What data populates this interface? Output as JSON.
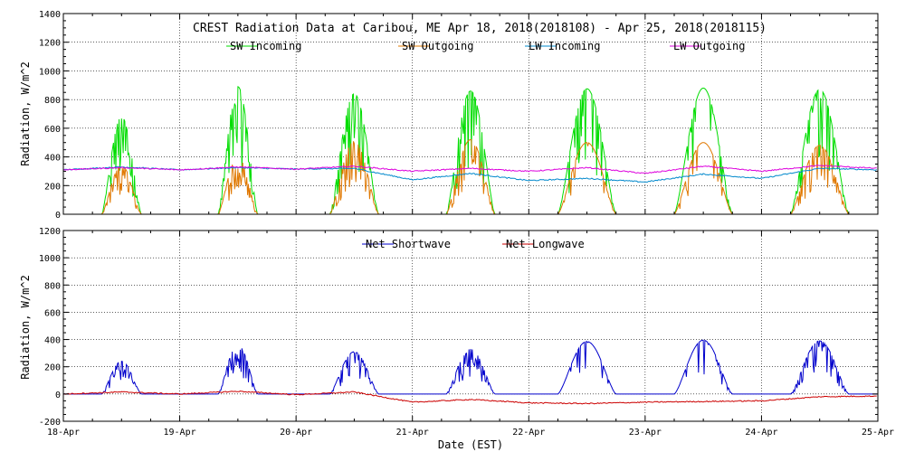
{
  "chart_data": [
    {
      "type": "line",
      "title": "CREST Radiation Data at Caribou, ME   Apr 18, 2018(2018108) - Apr 25, 2018(2018115)",
      "ylabel": "Radiation, W/m^2",
      "xlabel": "",
      "ylim": [
        0,
        1400
      ],
      "yticks": [
        0,
        200,
        400,
        600,
        800,
        1000,
        1200,
        1400
      ],
      "xlim": [
        "2018-04-18",
        "2018-04-25"
      ],
      "grid": true,
      "legend": "top",
      "x_unit": "date (EST), daily tick at 00:00",
      "series": [
        {
          "name": "SW Incoming",
          "color": "#00dd00",
          "daily_peak": [
            680,
            890,
            840,
            860,
            875,
            880,
            870
          ],
          "points": [
            [
              "04-18 08:00",
              0
            ],
            [
              "04-18 12:00",
              680
            ],
            [
              "04-18 16:00",
              0
            ],
            [
              "04-19 08:00",
              0
            ],
            [
              "04-19 12:00",
              890
            ],
            [
              "04-19 16:00",
              0
            ],
            [
              "04-20 07:00",
              0
            ],
            [
              "04-20 12:00",
              840
            ],
            [
              "04-20 17:00",
              0
            ],
            [
              "04-21 07:00",
              0
            ],
            [
              "04-21 12:00",
              860
            ],
            [
              "04-21 17:00",
              0
            ],
            [
              "04-22 06:00",
              0
            ],
            [
              "04-22 12:00",
              875
            ],
            [
              "04-22 18:00",
              0
            ],
            [
              "04-23 06:00",
              0
            ],
            [
              "04-23 12:00",
              880
            ],
            [
              "04-23 18:00",
              0
            ],
            [
              "04-24 06:00",
              0
            ],
            [
              "04-24 12:00",
              870
            ],
            [
              "04-24 18:00",
              0
            ]
          ]
        },
        {
          "name": "SW Outgoing",
          "color": "#e07800",
          "daily_peak": [
            340,
            400,
            510,
            520,
            500,
            500,
            480
          ],
          "points": [
            [
              "04-18 08:00",
              0
            ],
            [
              "04-18 12:00",
              340
            ],
            [
              "04-18 16:00",
              0
            ],
            [
              "04-19 08:00",
              0
            ],
            [
              "04-19 12:00",
              400
            ],
            [
              "04-19 16:00",
              0
            ],
            [
              "04-20 07:00",
              0
            ],
            [
              "04-20 12:00",
              510
            ],
            [
              "04-20 17:00",
              0
            ],
            [
              "04-21 07:00",
              0
            ],
            [
              "04-21 12:00",
              520
            ],
            [
              "04-21 17:00",
              0
            ],
            [
              "04-22 06:00",
              0
            ],
            [
              "04-22 12:00",
              500
            ],
            [
              "04-22 18:00",
              0
            ],
            [
              "04-23 06:00",
              0
            ],
            [
              "04-23 12:00",
              500
            ],
            [
              "04-23 18:00",
              0
            ],
            [
              "04-24 06:00",
              0
            ],
            [
              "04-24 12:00",
              480
            ],
            [
              "04-24 18:00",
              0
            ]
          ]
        },
        {
          "name": "LW Incoming",
          "color": "#0088cc",
          "points": [
            [
              "04-18 00:00",
              310
            ],
            [
              "04-18 12:00",
              330
            ],
            [
              "04-19 00:00",
              310
            ],
            [
              "04-19 12:00",
              325
            ],
            [
              "04-20 00:00",
              315
            ],
            [
              "04-20 12:00",
              320
            ],
            [
              "04-21 00:00",
              240
            ],
            [
              "04-21 12:00",
              285
            ],
            [
              "04-22 00:00",
              235
            ],
            [
              "04-22 12:00",
              250
            ],
            [
              "04-23 00:00",
              225
            ],
            [
              "04-23 12:00",
              280
            ],
            [
              "04-24 00:00",
              250
            ],
            [
              "04-24 12:00",
              320
            ],
            [
              "04-25 00:00",
              310
            ]
          ]
        },
        {
          "name": "LW Outgoing",
          "color": "#dd00dd",
          "points": [
            [
              "04-18 00:00",
              310
            ],
            [
              "04-18 12:00",
              325
            ],
            [
              "04-19 00:00",
              310
            ],
            [
              "04-19 12:00",
              330
            ],
            [
              "04-20 00:00",
              315
            ],
            [
              "04-20 12:00",
              335
            ],
            [
              "04-21 00:00",
              300
            ],
            [
              "04-21 12:00",
              320
            ],
            [
              "04-22 00:00",
              300
            ],
            [
              "04-22 12:00",
              325
            ],
            [
              "04-23 00:00",
              285
            ],
            [
              "04-23 12:00",
              335
            ],
            [
              "04-24 00:00",
              300
            ],
            [
              "04-24 12:00",
              340
            ],
            [
              "04-25 00:00",
              320
            ]
          ]
        }
      ]
    },
    {
      "type": "line",
      "title": "",
      "ylabel": "Radiation, W/m^2",
      "xlabel": "Date (EST)",
      "ylim": [
        -200,
        1200
      ],
      "yticks": [
        -200,
        0,
        200,
        400,
        600,
        800,
        1000,
        1200
      ],
      "categories": [
        "18-Apr",
        "19-Apr",
        "20-Apr",
        "21-Apr",
        "22-Apr",
        "23-Apr",
        "24-Apr",
        "25-Apr"
      ],
      "grid": true,
      "legend": "top",
      "series": [
        {
          "name": "Net Shortwave",
          "color": "#0000cc",
          "daily_peak": [
            240,
            360,
            310,
            330,
            385,
            395,
            390
          ],
          "points": [
            [
              "04-18 08:00",
              0
            ],
            [
              "04-18 12:00",
              240
            ],
            [
              "04-18 16:00",
              0
            ],
            [
              "04-19 08:00",
              0
            ],
            [
              "04-19 12:00",
              360
            ],
            [
              "04-19 16:00",
              0
            ],
            [
              "04-20 07:00",
              0
            ],
            [
              "04-20 12:00",
              310
            ],
            [
              "04-20 17:00",
              0
            ],
            [
              "04-21 07:00",
              0
            ],
            [
              "04-21 12:00",
              330
            ],
            [
              "04-21 17:00",
              0
            ],
            [
              "04-22 06:00",
              0
            ],
            [
              "04-22 12:00",
              385
            ],
            [
              "04-22 18:00",
              0
            ],
            [
              "04-23 06:00",
              0
            ],
            [
              "04-23 12:00",
              395
            ],
            [
              "04-23 18:00",
              0
            ],
            [
              "04-24 06:00",
              0
            ],
            [
              "04-24 12:00",
              390
            ],
            [
              "04-24 18:00",
              0
            ]
          ]
        },
        {
          "name": "Net Longwave",
          "color": "#cc0000",
          "points": [
            [
              "04-18 00:00",
              0
            ],
            [
              "04-18 12:00",
              15
            ],
            [
              "04-19 00:00",
              0
            ],
            [
              "04-19 12:00",
              20
            ],
            [
              "04-20 00:00",
              -5
            ],
            [
              "04-20 12:00",
              15
            ],
            [
              "04-21 00:00",
              -60
            ],
            [
              "04-21 12:00",
              -40
            ],
            [
              "04-22 00:00",
              -65
            ],
            [
              "04-22 12:00",
              -70
            ],
            [
              "04-23 00:00",
              -60
            ],
            [
              "04-23 12:00",
              -55
            ],
            [
              "04-24 00:00",
              -50
            ],
            [
              "04-24 12:00",
              -20
            ],
            [
              "04-25 00:00",
              -15
            ]
          ]
        }
      ]
    }
  ],
  "title_text": "CREST Radiation Data at Caribou, ME   Apr 18, 2018(2018108) - Apr 25, 2018(2018115)",
  "ylabel_text": "Radiation, W/m^2",
  "xlabel_text": "Date (EST)"
}
